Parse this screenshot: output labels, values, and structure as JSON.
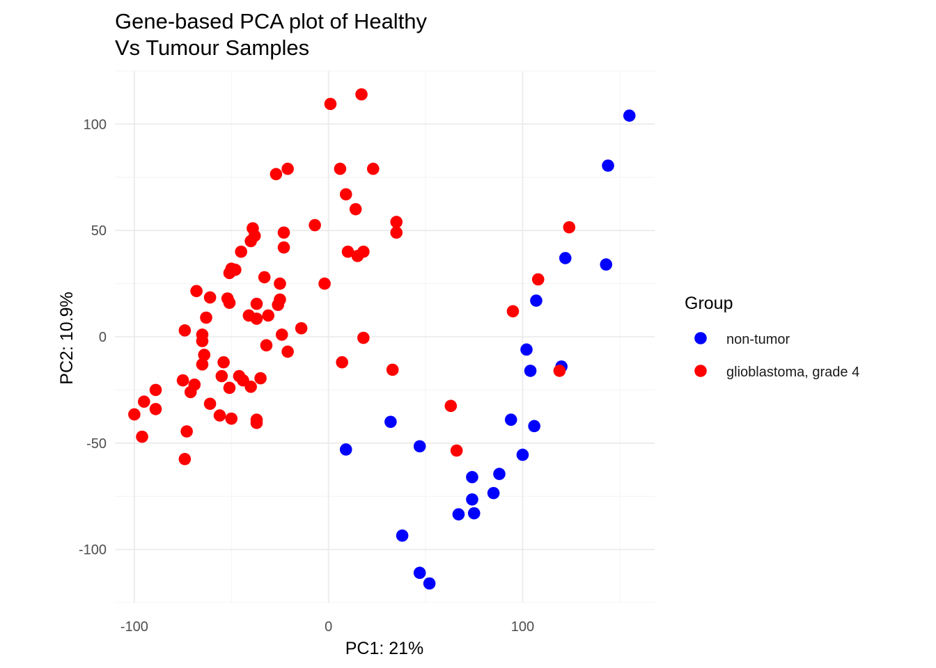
{
  "chart_data": {
    "type": "scatter",
    "title_lines": [
      "Gene-based PCA plot of Healthy",
      "Vs Tumour Samples"
    ],
    "xlabel": "PC1: 21%",
    "ylabel": "PC2: 10.9%",
    "xlim": [
      -110,
      168
    ],
    "ylim": [
      -125,
      125
    ],
    "x_ticks": [
      -100,
      0,
      100
    ],
    "y_ticks": [
      -100,
      -50,
      0,
      50,
      100
    ],
    "x_tick_labels": [
      "-100",
      "0",
      "100"
    ],
    "y_tick_labels": [
      "-100",
      "-50",
      "0",
      "50",
      "100"
    ],
    "grid": true,
    "legend": {
      "title": "Group",
      "position": "right"
    },
    "series": [
      {
        "name": "non-tumor",
        "color": "#0000ff",
        "points": [
          [
            155,
            104
          ],
          [
            144,
            80.5
          ],
          [
            143,
            34
          ],
          [
            122,
            37
          ],
          [
            107,
            17
          ],
          [
            102,
            -6
          ],
          [
            104,
            -16
          ],
          [
            120,
            -14
          ],
          [
            106,
            -42
          ],
          [
            94,
            -39
          ],
          [
            100,
            -55.5
          ],
          [
            88,
            -64.5
          ],
          [
            85,
            -73.5
          ],
          [
            74,
            -66
          ],
          [
            74,
            -76.5
          ],
          [
            75,
            -83
          ],
          [
            67,
            -83.5
          ],
          [
            47,
            -51.5
          ],
          [
            32,
            -40
          ],
          [
            9,
            -53
          ],
          [
            38,
            -93.5
          ],
          [
            47,
            -111
          ],
          [
            52,
            -116
          ]
        ]
      },
      {
        "name": "glioblastoma, grade 4",
        "color": "#ff0000",
        "points": [
          [
            17,
            114
          ],
          [
            1,
            109.5
          ],
          [
            -21,
            79
          ],
          [
            -27,
            76.5
          ],
          [
            6,
            79
          ],
          [
            23,
            79
          ],
          [
            9,
            67
          ],
          [
            14,
            60
          ],
          [
            -7,
            52.5
          ],
          [
            35,
            54
          ],
          [
            35,
            49
          ],
          [
            -39,
            51
          ],
          [
            -23,
            49
          ],
          [
            -38,
            47.5
          ],
          [
            -40,
            45
          ],
          [
            -23,
            42
          ],
          [
            -45,
            40
          ],
          [
            10,
            40
          ],
          [
            15,
            38
          ],
          [
            18,
            40
          ],
          [
            -50,
            32
          ],
          [
            -51,
            30
          ],
          [
            -48,
            31.5
          ],
          [
            -33,
            28
          ],
          [
            -25,
            25
          ],
          [
            -2,
            25
          ],
          [
            -68,
            21.5
          ],
          [
            -61,
            18.5
          ],
          [
            -52,
            18
          ],
          [
            -51,
            16
          ],
          [
            -25,
            17.5
          ],
          [
            -37,
            15.5
          ],
          [
            -26,
            15
          ],
          [
            -41,
            10
          ],
          [
            -37,
            8.5
          ],
          [
            -31,
            10
          ],
          [
            -63,
            9
          ],
          [
            -14,
            4
          ],
          [
            -74,
            3
          ],
          [
            -65,
            1
          ],
          [
            -24,
            1
          ],
          [
            -65,
            -2
          ],
          [
            18,
            -0.5
          ],
          [
            -32,
            -4
          ],
          [
            -21,
            -7
          ],
          [
            -64,
            -8.5
          ],
          [
            -54,
            -12
          ],
          [
            7,
            -12
          ],
          [
            -65,
            -13
          ],
          [
            33,
            -15.5
          ],
          [
            -46,
            -18.5
          ],
          [
            -55,
            -18.5
          ],
          [
            -44,
            -20.5
          ],
          [
            -35,
            -19.5
          ],
          [
            -75,
            -20.5
          ],
          [
            -69,
            -22.5
          ],
          [
            -40,
            -23.5
          ],
          [
            -51,
            -24
          ],
          [
            -71,
            -26
          ],
          [
            -89,
            -25
          ],
          [
            -95,
            -30.5
          ],
          [
            -61,
            -31.5
          ],
          [
            -89,
            -34
          ],
          [
            -100,
            -36.5
          ],
          [
            -56,
            -37
          ],
          [
            -50,
            -38.5
          ],
          [
            -37,
            -39
          ],
          [
            -37,
            -40.5
          ],
          [
            -96,
            -47
          ],
          [
            -73,
            -44.5
          ],
          [
            -74,
            -57.5
          ],
          [
            63,
            -32.5
          ],
          [
            66,
            -53.5
          ],
          [
            95,
            12
          ],
          [
            108,
            27
          ],
          [
            124,
            51.5
          ],
          [
            119,
            -16
          ]
        ]
      }
    ]
  }
}
